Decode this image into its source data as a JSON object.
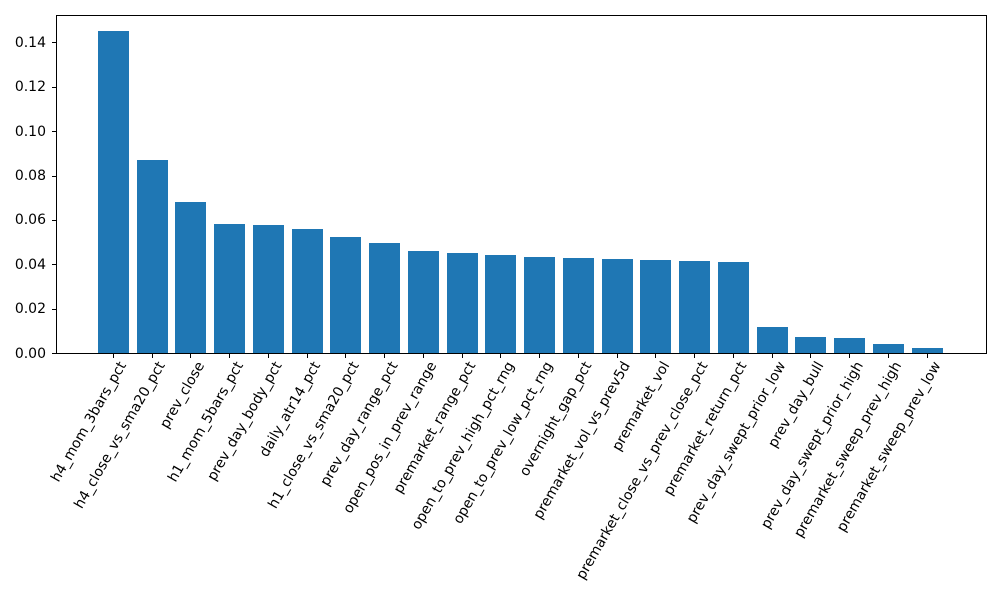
{
  "figure": {
    "background": "#ffffff"
  },
  "chart_data": {
    "type": "bar",
    "title": "",
    "xlabel": "",
    "ylabel": "",
    "categories": [
      "h4_mom_3bars_pct",
      "h4_close_vs_sma20_pct",
      "prev_close",
      "h1_mom_5bars_pct",
      "prev_day_body_pct",
      "daily_atr14_pct",
      "h1_close_vs_sma20_pct",
      "prev_day_range_pct",
      "open_pos_in_prev_range",
      "premarket_range_pct",
      "open_to_prev_high_pct_rng",
      "open_to_prev_low_pct_rng",
      "overnight_gap_pct",
      "premarket_vol_vs_prev5d",
      "premarket_vol",
      "premarket_close_vs_prev_close_pct",
      "premarket_return_pct",
      "prev_day_swept_prior_low",
      "prev_day_bull",
      "prev_day_swept_prior_high",
      "premarket_sweep_prev_high",
      "premarket_sweep_prev_low"
    ],
    "values": [
      0.1455,
      0.0873,
      0.0684,
      0.0585,
      0.0579,
      0.0561,
      0.0527,
      0.0496,
      0.0461,
      0.0455,
      0.0442,
      0.0436,
      0.043,
      0.0425,
      0.0422,
      0.0418,
      0.0414,
      0.0118,
      0.0074,
      0.007,
      0.0041,
      0.0026
    ],
    "ylim": [
      0,
      0.1528
    ],
    "yticks": [
      "0.00",
      "0.02",
      "0.04",
      "0.06",
      "0.08",
      "0.10",
      "0.12",
      "0.14"
    ],
    "bar_color": "#1f77b4",
    "axis_color": "#000000",
    "grid": false,
    "legend_position": "none"
  }
}
